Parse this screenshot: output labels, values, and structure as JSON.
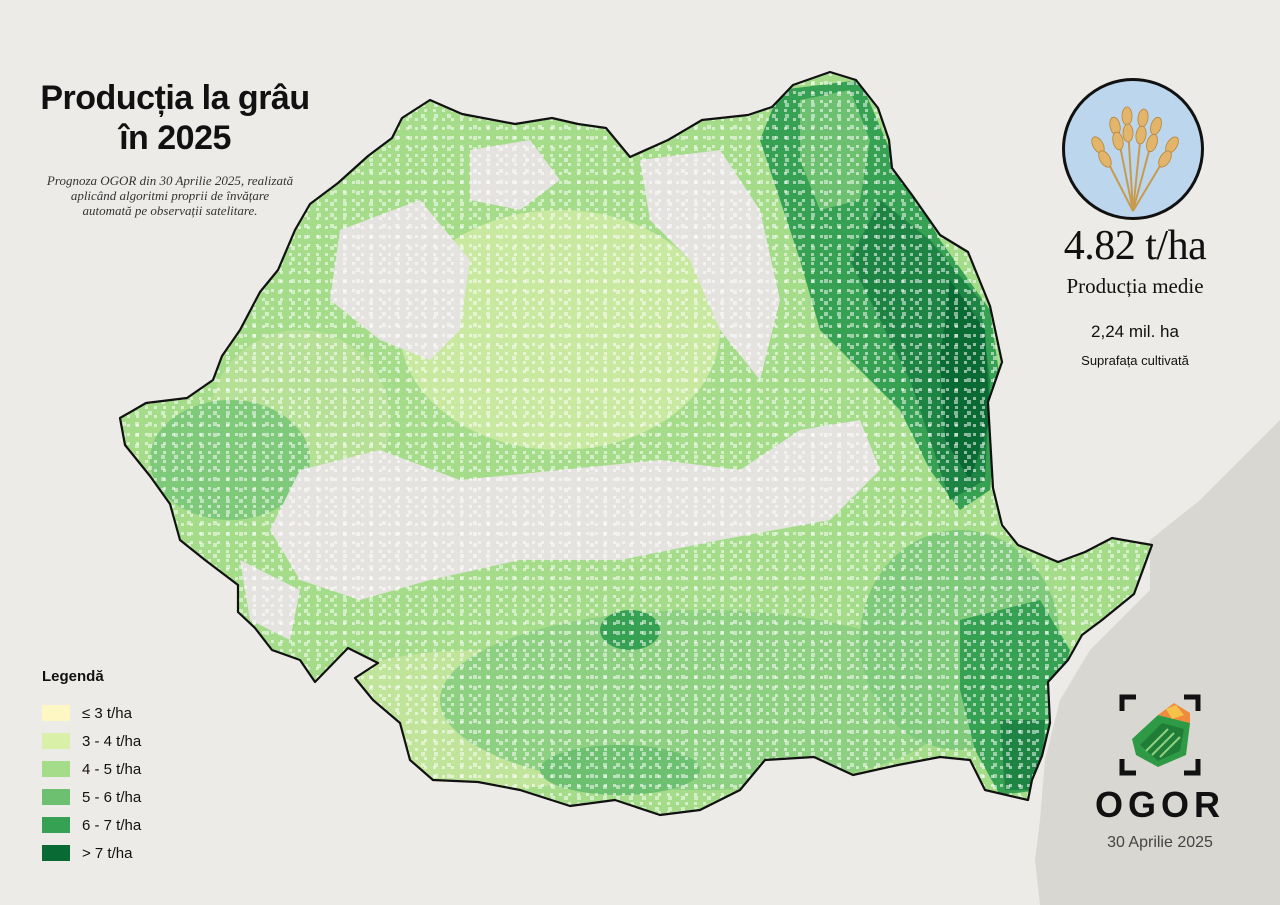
{
  "title": "Producția la grâu în 2025",
  "subtitle": "Prognoza OGOR din 30 Aprilie 2025, realizată aplicând algoritmi proprii de învățare automată pe observații satelitare.",
  "stats": {
    "average_yield": "4.82 t/ha",
    "average_label": "Producția medie",
    "area_value": "2,24 mil. ha",
    "area_label": "Suprafața cultivată"
  },
  "legend": {
    "title": "Legendă",
    "items": [
      {
        "label": "≤ 3 t/ha",
        "color": "#fdf7c3"
      },
      {
        "label": "3 - 4 t/ha",
        "color": "#d8f0a8"
      },
      {
        "label": "4 - 5 t/ha",
        "color": "#a5dc8a"
      },
      {
        "label": "5 - 6 t/ha",
        "color": "#6cc070"
      },
      {
        "label": "6 - 7 t/ha",
        "color": "#36a152"
      },
      {
        "label": "> 7 t/ha",
        "color": "#0a6a34"
      }
    ]
  },
  "brand": {
    "name": "OGOR",
    "date": "30 Aprilie 2025"
  },
  "colors": {
    "background": "#ecebe8",
    "sea": "#d9d7d2",
    "border": "#111111",
    "wheat_bg": "#bcd6ee"
  },
  "icons": {
    "wheat": "wheat-icon",
    "logo": "ogor-logo-icon"
  }
}
